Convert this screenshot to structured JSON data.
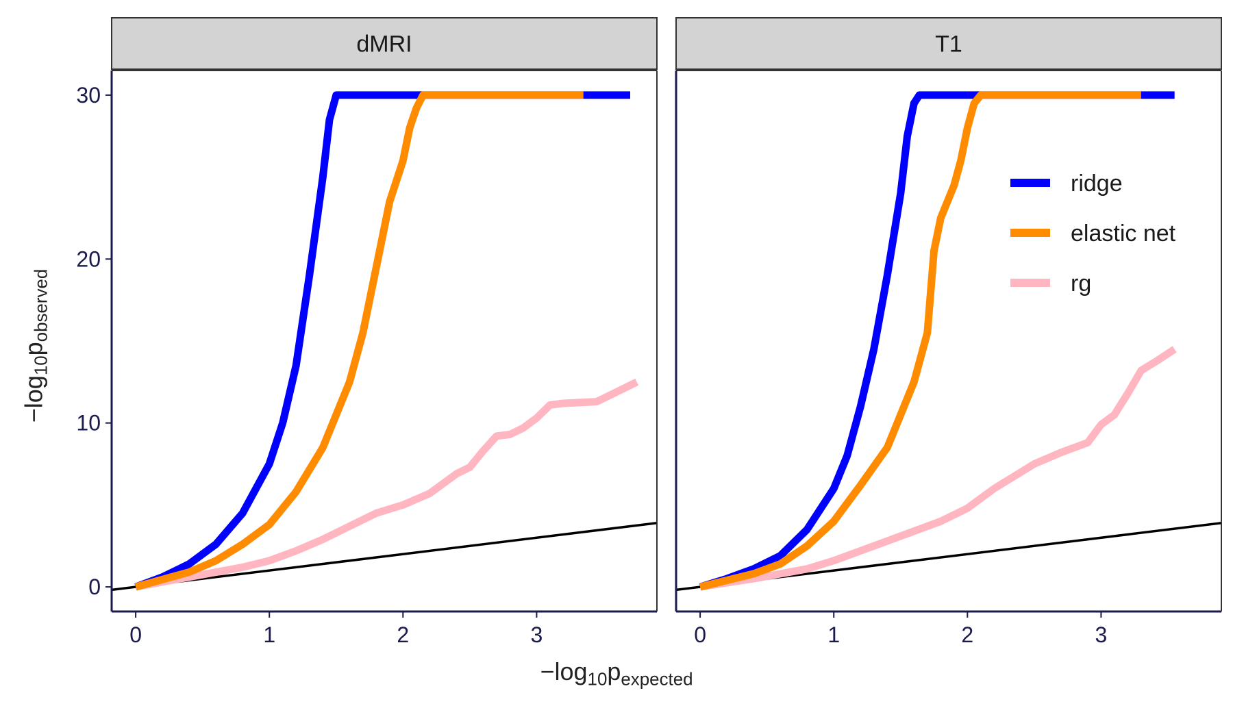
{
  "figure": {
    "x_title": {
      "main": "−log",
      "sub": "10",
      "var": "p",
      "var_sub": "expected"
    },
    "y_title": {
      "main": "−log",
      "sub": "10",
      "var": "p",
      "var_sub": "observed"
    }
  },
  "chart_data": {
    "type": "line",
    "xlim": [
      -0.18,
      3.9
    ],
    "ylim": [
      -1.5,
      31.5
    ],
    "x_ticks": [
      0,
      1,
      2,
      3
    ],
    "y_ticks": [
      0,
      10,
      20,
      30
    ],
    "grid": false,
    "legend_position": "top-right of T1 panel",
    "legend": [
      {
        "name": "ridge",
        "color": "#0000ff"
      },
      {
        "name": "elastic net",
        "color": "#ff8c00"
      },
      {
        "name": "rg",
        "color": "#ffb6c1"
      }
    ],
    "reference_line": {
      "slope": 1,
      "intercept": 0,
      "color": "#000000"
    },
    "panels": [
      {
        "title": "dMRI",
        "series": [
          {
            "name": "ridge",
            "color": "#0000ff",
            "x": [
              0,
              0.2,
              0.4,
              0.6,
              0.8,
              1.0,
              1.1,
              1.2,
              1.3,
              1.35,
              1.4,
              1.45,
              1.5,
              1.52,
              1.6,
              2.0,
              3.0,
              3.7
            ],
            "y": [
              0,
              0.6,
              1.4,
              2.6,
              4.5,
              7.5,
              10.0,
              13.5,
              19.0,
              22.0,
              25.0,
              28.5,
              30,
              30,
              30,
              30,
              30,
              30
            ]
          },
          {
            "name": "elastic net",
            "color": "#ff8c00",
            "x": [
              0,
              0.2,
              0.4,
              0.6,
              0.8,
              1.0,
              1.2,
              1.4,
              1.5,
              1.6,
              1.7,
              1.8,
              1.9,
              2.0,
              2.05,
              2.1,
              2.15,
              2.5,
              3.0,
              3.35
            ],
            "y": [
              0,
              0.45,
              0.9,
              1.6,
              2.6,
              3.8,
              5.8,
              8.5,
              10.5,
              12.5,
              15.5,
              19.5,
              23.5,
              26.0,
              28.0,
              29.2,
              30,
              30,
              30,
              30
            ]
          },
          {
            "name": "rg",
            "color": "#ffb6c1",
            "x": [
              0,
              0.4,
              0.8,
              1.0,
              1.2,
              1.4,
              1.6,
              1.8,
              2.0,
              2.2,
              2.4,
              2.5,
              2.6,
              2.7,
              2.8,
              2.9,
              3.0,
              3.1,
              3.2,
              3.45,
              3.75
            ],
            "y": [
              0,
              0.6,
              1.2,
              1.6,
              2.2,
              2.9,
              3.7,
              4.5,
              5.0,
              5.7,
              6.9,
              7.3,
              8.3,
              9.2,
              9.3,
              9.7,
              10.3,
              11.1,
              11.2,
              11.3,
              12.5
            ]
          }
        ]
      },
      {
        "title": "T1",
        "series": [
          {
            "name": "ridge",
            "color": "#0000ff",
            "x": [
              0,
              0.2,
              0.4,
              0.6,
              0.8,
              1.0,
              1.1,
              1.2,
              1.3,
              1.4,
              1.5,
              1.55,
              1.6,
              1.64,
              1.7,
              2.0,
              3.0,
              3.55
            ],
            "y": [
              0,
              0.5,
              1.1,
              1.9,
              3.5,
              6.0,
              8.0,
              11.0,
              14.5,
              19.0,
              24.0,
              27.5,
              29.5,
              30,
              30,
              30,
              30,
              30
            ]
          },
          {
            "name": "elastic net",
            "color": "#ff8c00",
            "x": [
              0,
              0.2,
              0.4,
              0.6,
              0.8,
              1.0,
              1.2,
              1.4,
              1.5,
              1.6,
              1.7,
              1.75,
              1.8,
              1.9,
              1.95,
              2.0,
              2.05,
              2.1,
              2.5,
              3.0,
              3.3
            ],
            "y": [
              0,
              0.4,
              0.8,
              1.4,
              2.5,
              4.0,
              6.2,
              8.5,
              10.5,
              12.5,
              15.5,
              20.5,
              22.5,
              24.5,
              26.0,
              28.0,
              29.5,
              30,
              30,
              30,
              30
            ]
          },
          {
            "name": "rg",
            "color": "#ffb6c1",
            "x": [
              0,
              0.4,
              0.8,
              1.0,
              1.2,
              1.4,
              1.6,
              1.8,
              2.0,
              2.2,
              2.4,
              2.5,
              2.7,
              2.9,
              3.0,
              3.1,
              3.2,
              3.3,
              3.4,
              3.55
            ],
            "y": [
              0,
              0.5,
              1.1,
              1.6,
              2.2,
              2.8,
              3.4,
              4.0,
              4.8,
              6.0,
              7.0,
              7.5,
              8.2,
              8.8,
              9.9,
              10.5,
              11.8,
              13.2,
              13.7,
              14.5
            ]
          }
        ]
      }
    ]
  }
}
